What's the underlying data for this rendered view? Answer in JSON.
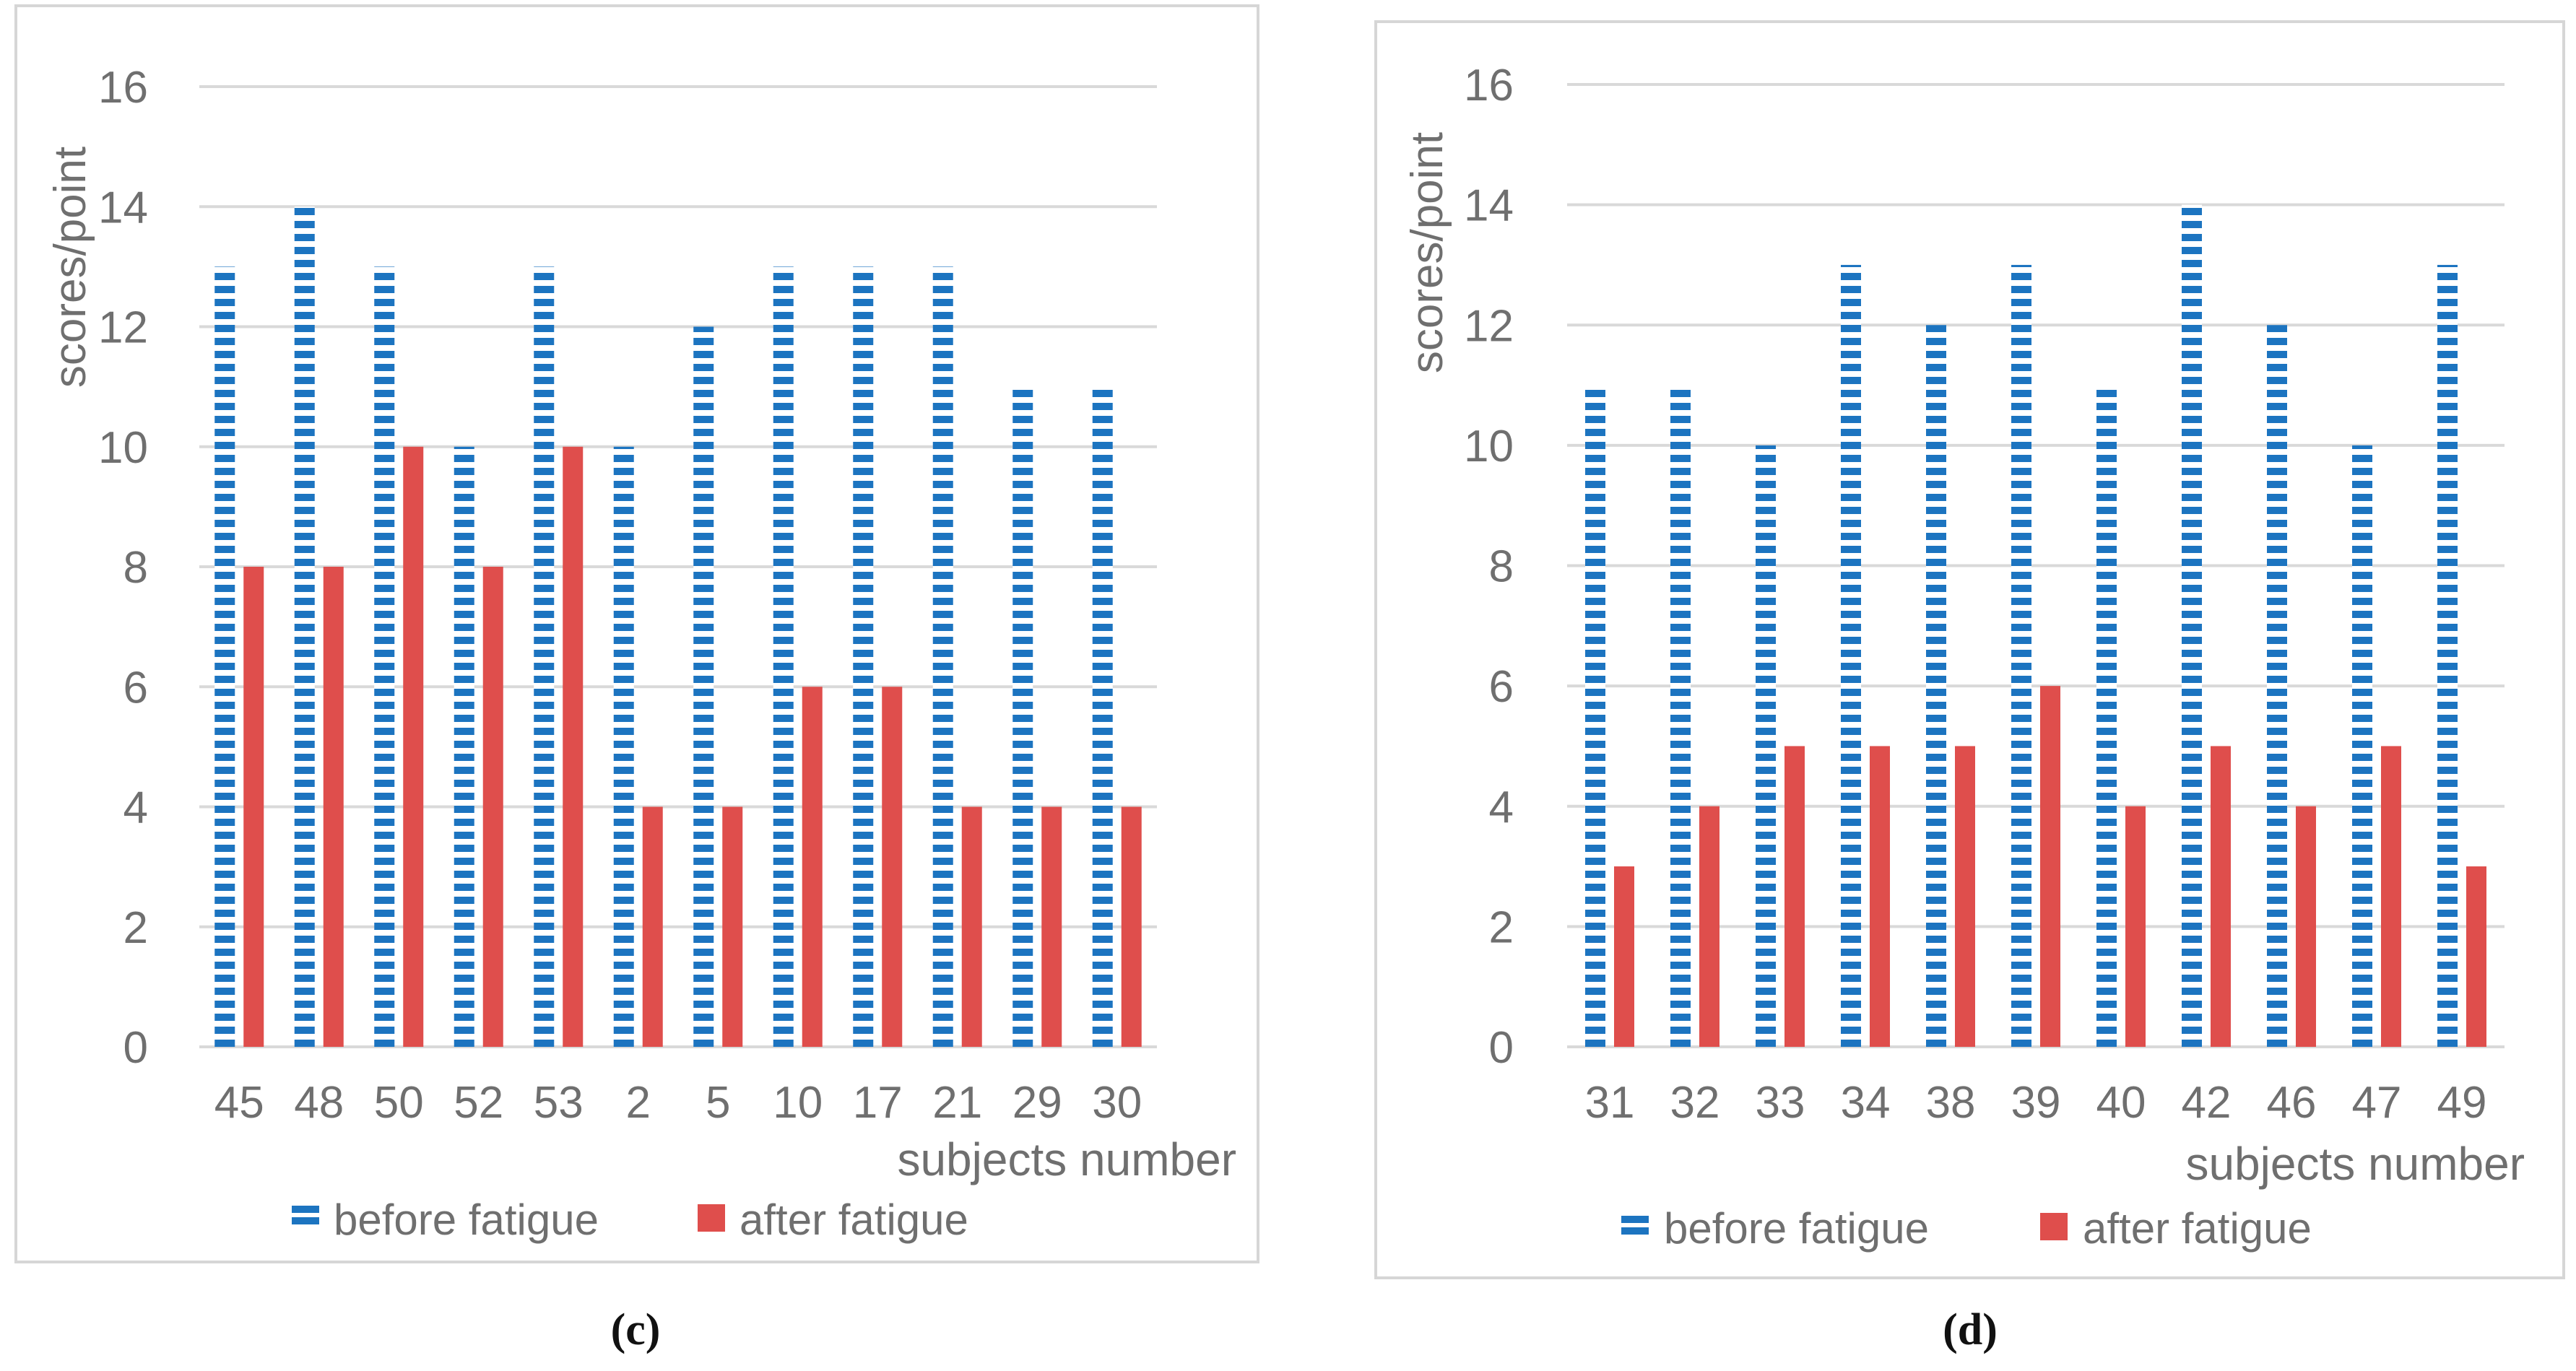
{
  "chart_data": [
    {
      "type": "bar",
      "panel_label": "(c)",
      "ylabel": "scores/point",
      "xlabel": "subjects number",
      "ylim": [
        0,
        16
      ],
      "yticks": [
        0,
        2,
        4,
        6,
        8,
        10,
        12,
        14,
        16
      ],
      "grid": true,
      "legend_position": "bottom",
      "categories": [
        "45",
        "48",
        "50",
        "52",
        "53",
        "2",
        "5",
        "10",
        "17",
        "21",
        "29",
        "30"
      ],
      "series": [
        {
          "name": "before fatigue",
          "color": "#1c74c0",
          "pattern": "dashed-horizontal",
          "values": [
            13,
            14,
            13,
            10,
            13,
            10,
            12,
            13,
            13,
            13,
            11,
            11
          ]
        },
        {
          "name": "after fatigue",
          "color": "#df4e4c",
          "pattern": "solid",
          "values": [
            8,
            8,
            10,
            8,
            10,
            4,
            4,
            6,
            6,
            4,
            4,
            4
          ]
        }
      ]
    },
    {
      "type": "bar",
      "panel_label": "(d)",
      "ylabel": "scores/point",
      "xlabel": "subjects number",
      "ylim": [
        0,
        16
      ],
      "yticks": [
        0,
        2,
        4,
        6,
        8,
        10,
        12,
        14,
        16
      ],
      "grid": true,
      "legend_position": "bottom",
      "categories": [
        "31",
        "32",
        "33",
        "34",
        "38",
        "39",
        "40",
        "42",
        "46",
        "47",
        "49"
      ],
      "series": [
        {
          "name": "before fatigue",
          "color": "#1c74c0",
          "pattern": "dashed-horizontal",
          "values": [
            11,
            11,
            10,
            13,
            12,
            13,
            11,
            14,
            12,
            10,
            13
          ]
        },
        {
          "name": "after fatigue",
          "color": "#df4e4c",
          "pattern": "solid",
          "values": [
            3,
            4,
            5,
            5,
            5,
            6,
            4,
            5,
            4,
            5,
            3
          ]
        }
      ]
    }
  ],
  "colors": {
    "axis_text": "#6f6f6f",
    "grid": "#d9d9d9",
    "frame": "#d6d6d6"
  }
}
